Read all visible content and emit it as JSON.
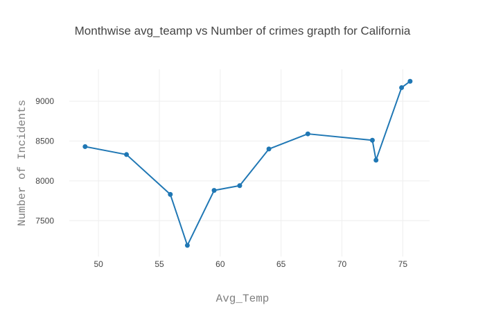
{
  "chart_data": {
    "type": "line",
    "title": "Monthwise avg_teamp vs Number of crimes grapth for California",
    "xlabel": "Avg_Temp",
    "ylabel": "Number of Incidents",
    "xlim": [
      47.6,
      77.2
    ],
    "ylim": [
      7050,
      9400
    ],
    "x_ticks": [
      50,
      55,
      60,
      65,
      70,
      75
    ],
    "y_ticks": [
      7500,
      8000,
      8500,
      9000
    ],
    "grid": true,
    "legend": "none",
    "color": "#1f77b4",
    "series": [
      {
        "x": [
          48.9,
          52.3,
          55.9,
          57.3,
          59.5,
          61.6,
          64.0,
          67.2,
          72.5,
          72.8,
          74.9,
          75.6
        ],
        "y": [
          8430,
          8330,
          7830,
          7190,
          7880,
          7940,
          8400,
          8590,
          8510,
          8260,
          9170,
          9250
        ]
      }
    ]
  }
}
